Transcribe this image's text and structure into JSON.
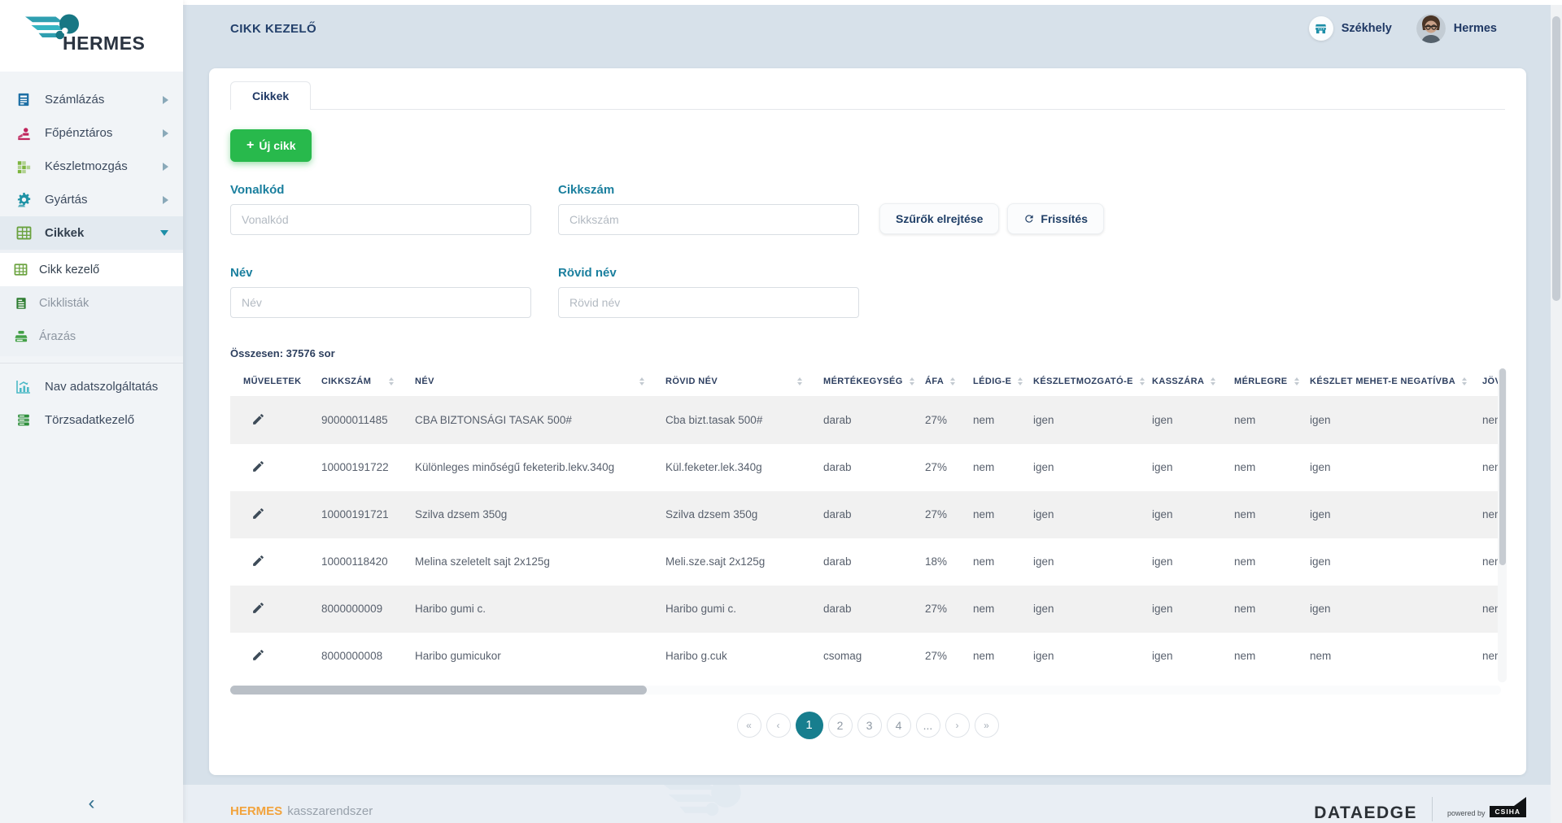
{
  "colors": {
    "accent_teal": "#177E8E",
    "green": "#28B94C",
    "orange": "#F2A33C",
    "navy": "#23406B",
    "label_teal": "#1A7F9E"
  },
  "header": {
    "title": "CIKK KEZELŐ",
    "location": "Székhely",
    "user": "Hermes"
  },
  "sidebar": {
    "brand": "HERMES",
    "items": [
      {
        "name": "szamlazas",
        "icon": "invoice-icon",
        "label": "Számlázás",
        "caret": "right"
      },
      {
        "name": "fopenztaros",
        "icon": "cashier-icon",
        "label": "Főpénztáros",
        "caret": "right"
      },
      {
        "name": "keszletmozgas",
        "icon": "stock-movement-icon",
        "label": "Készletmozgás",
        "caret": "right"
      },
      {
        "name": "gyartas",
        "icon": "manufacturing-icon",
        "label": "Gyártás",
        "caret": "right"
      },
      {
        "name": "cikkek",
        "icon": "articles-icon",
        "label": "Cikkek",
        "caret": "down",
        "active": true
      }
    ],
    "subitems": [
      {
        "name": "cikk-kezelo",
        "icon": "article-manager-icon",
        "label": "Cikk kezelő",
        "active": true
      },
      {
        "name": "cikklistak",
        "icon": "article-lists-icon",
        "label": "Cikklisták"
      },
      {
        "name": "arazas",
        "icon": "pricing-icon",
        "label": "Árazás"
      }
    ],
    "items_bottom": [
      {
        "name": "nav-adatszolgaltatas",
        "icon": "nav-report-icon",
        "label": "Nav adatszolgáltatás"
      },
      {
        "name": "torzsadatkezelo",
        "icon": "master-data-icon",
        "label": "Törzsadatkezelő"
      }
    ]
  },
  "main": {
    "tab": "Cikkek",
    "new_button": {
      "icon": "plus",
      "label": "Új cikk"
    },
    "filters": [
      {
        "name": "vonalkod",
        "label": "Vonalkód",
        "placeholder": "Vonalkód",
        "value": ""
      },
      {
        "name": "cikkszam",
        "label": "Cikkszám",
        "placeholder": "Cikkszám",
        "value": ""
      },
      {
        "name": "nev",
        "label": "Név",
        "placeholder": "Név",
        "value": ""
      },
      {
        "name": "rovid-nev",
        "label": "Rövid név",
        "placeholder": "Rövid név",
        "value": ""
      }
    ],
    "hide_filters_label": "Szűrők elrejtése",
    "refresh_label": "Frissítés",
    "total": "Összesen: 37576 sor",
    "table": {
      "columns": [
        {
          "label": "MŰVELETEK",
          "sortable": false
        },
        {
          "label": "CIKKSZÁM",
          "sortable": true
        },
        {
          "label": "NÉV",
          "sortable": true
        },
        {
          "label": "RÖVID NÉV",
          "sortable": true
        },
        {
          "label": "MÉRTÉKEGYSÉG",
          "sortable": true
        },
        {
          "label": "ÁFA",
          "sortable": true
        },
        {
          "label": "LÉDIG-E",
          "sortable": true
        },
        {
          "label": "KÉSZLETMOZGATÓ-E",
          "sortable": true
        },
        {
          "label": "KASSZÁRA",
          "sortable": true
        },
        {
          "label": "MÉRLEGRE",
          "sortable": true
        },
        {
          "label": "KÉSZLET MEHET-E NEGATÍVBA",
          "sortable": true
        },
        {
          "label": "JÖVE",
          "sortable": false
        }
      ],
      "rows": [
        [
          "90000011485",
          "CBA BIZTONSÁGI TASAK 500#",
          "Cba bizt.tasak 500#",
          "darab",
          "27%",
          "nem",
          "igen",
          "igen",
          "nem",
          "igen",
          "nem"
        ],
        [
          "10000191722",
          "Különleges minőségű feketerib.lekv.340g",
          "Kül.feketer.lek.340g",
          "darab",
          "27%",
          "nem",
          "igen",
          "igen",
          "nem",
          "igen",
          "nem"
        ],
        [
          "10000191721",
          "Szilva dzsem 350g",
          "Szilva dzsem 350g",
          "darab",
          "27%",
          "nem",
          "igen",
          "igen",
          "nem",
          "igen",
          "nem"
        ],
        [
          "10000118420",
          "Melina szeletelt sajt 2x125g",
          "Meli.sze.sajt 2x125g",
          "darab",
          "18%",
          "nem",
          "igen",
          "igen",
          "nem",
          "igen",
          "nem"
        ],
        [
          "8000000009",
          "Haribo gumi c.",
          "Haribo gumi c.",
          "darab",
          "27%",
          "nem",
          "igen",
          "igen",
          "nem",
          "igen",
          "nem"
        ],
        [
          "8000000008",
          "Haribo gumicukor",
          "Haribo g.cuk",
          "csomag",
          "27%",
          "nem",
          "igen",
          "igen",
          "nem",
          "nem",
          "nem"
        ]
      ]
    },
    "pagination": {
      "items": [
        "«",
        "‹",
        "1",
        "2",
        "3",
        "4",
        "...",
        "›",
        "»"
      ],
      "active": "1"
    }
  },
  "footer": {
    "brand": "HERMES",
    "product": "kasszarendszer",
    "company": "DATAEDGE",
    "powered_by": "powered by",
    "powered_brand": "CSIHA"
  }
}
